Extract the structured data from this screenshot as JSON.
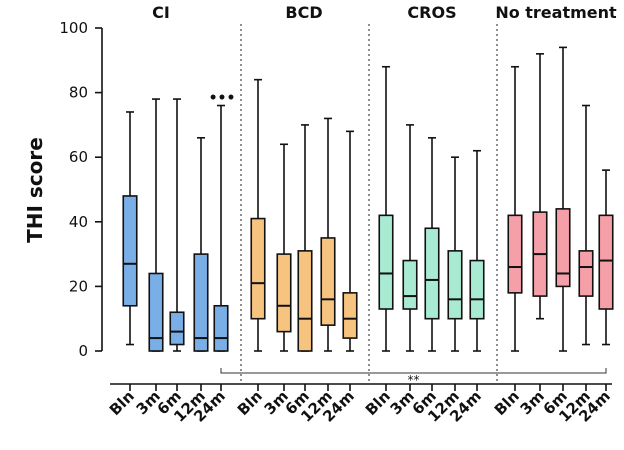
{
  "chart_data": {
    "type": "boxplot",
    "ylabel": "THI score",
    "ylim": [
      0,
      100
    ],
    "yticks": [
      0,
      20,
      40,
      60,
      80,
      100
    ],
    "groups": [
      {
        "name": "CI",
        "color": "#7aaee6",
        "categories": [
          "Bln",
          "3m",
          "6m",
          "12m",
          "24m"
        ],
        "boxes": [
          {
            "min": 2,
            "q1": 14,
            "median": 27,
            "q3": 48,
            "max": 74
          },
          {
            "min": 0,
            "q1": 0,
            "median": 4,
            "q3": 24,
            "max": 78
          },
          {
            "min": 0,
            "q1": 2,
            "median": 6,
            "q3": 12,
            "max": 78
          },
          {
            "min": 0,
            "q1": 0,
            "median": 4,
            "q3": 30,
            "max": 66
          },
          {
            "min": 0,
            "q1": 0,
            "median": 4,
            "q3": 14,
            "max": 76
          }
        ]
      },
      {
        "name": "BCD",
        "color": "#f7c480",
        "categories": [
          "Bln",
          "3m",
          "6m",
          "12m",
          "24m"
        ],
        "boxes": [
          {
            "min": 0,
            "q1": 10,
            "median": 21,
            "q3": 41,
            "max": 84
          },
          {
            "min": 0,
            "q1": 6,
            "median": 14,
            "q3": 30,
            "max": 64
          },
          {
            "min": 0,
            "q1": 0,
            "median": 10,
            "q3": 31,
            "max": 70
          },
          {
            "min": 0,
            "q1": 8,
            "median": 16,
            "q3": 35,
            "max": 72
          },
          {
            "min": 0,
            "q1": 4,
            "median": 10,
            "q3": 18,
            "max": 68
          }
        ]
      },
      {
        "name": "CROS",
        "color": "#a8ead2",
        "categories": [
          "Bln",
          "3m",
          "6m",
          "12m",
          "24m"
        ],
        "boxes": [
          {
            "min": 0,
            "q1": 13,
            "median": 24,
            "q3": 42,
            "max": 88
          },
          {
            "min": 0,
            "q1": 13,
            "median": 17,
            "q3": 28,
            "max": 70
          },
          {
            "min": 0,
            "q1": 10,
            "median": 22,
            "q3": 38,
            "max": 66
          },
          {
            "min": 0,
            "q1": 10,
            "median": 16,
            "q3": 31,
            "max": 60
          },
          {
            "min": 0,
            "q1": 10,
            "median": 16,
            "q3": 28,
            "max": 62
          }
        ]
      },
      {
        "name": "No treatment",
        "color": "#f5a0a8",
        "categories": [
          "Bln",
          "3m",
          "6m",
          "12m",
          "24m"
        ],
        "boxes": [
          {
            "min": 0,
            "q1": 18,
            "median": 26,
            "q3": 42,
            "max": 88
          },
          {
            "min": 10,
            "q1": 17,
            "median": 30,
            "q3": 43,
            "max": 92
          },
          {
            "min": 0,
            "q1": 20,
            "median": 24,
            "q3": 44,
            "max": 94
          },
          {
            "min": 2,
            "q1": 17,
            "median": 26,
            "q3": 31,
            "max": 76
          },
          {
            "min": 2,
            "q1": 13,
            "median": 28,
            "q3": 42,
            "max": 56
          }
        ]
      }
    ],
    "outlier_marker": {
      "group": 0,
      "box": 4,
      "text": "•••"
    },
    "significance": {
      "label": "**",
      "from_group": 0,
      "from_box": 4,
      "to_group": 3,
      "to_box": 4
    }
  }
}
